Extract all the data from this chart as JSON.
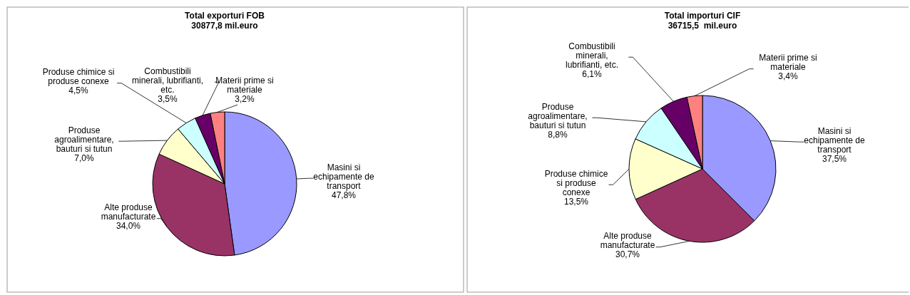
{
  "chart_data": [
    {
      "type": "pie",
      "title": "Total exporturi FOB",
      "subtitle": "30877,8 mil.euro",
      "categories": [
        "Masini si\nechipamente de\ntransport",
        "Alte produse\nmanufacturate",
        "Produse\nagroalimentare,\nbauturi si tutun",
        "Produse chimice si\nproduse conexe",
        "Combustibili\nminerali, lubrifianti,\netc.",
        "Materii prime si\nmateriale"
      ],
      "values": [
        47.8,
        34.0,
        7.0,
        4.5,
        3.5,
        3.2
      ],
      "value_labels": [
        "47,8%",
        "34,0%",
        "7,0%",
        "4,5%",
        "3,5%",
        "3,2%"
      ],
      "colors": [
        "#9999ff",
        "#993366",
        "#ffffcc",
        "#ccffff",
        "#660066",
        "#ff8080"
      ]
    },
    {
      "type": "pie",
      "title": "Total importuri CIF",
      "subtitle": "36715,5  mil.euro",
      "categories": [
        "Masini si\nechipamente de\ntransport",
        "Alte produse\nmanufacturate",
        "Produse chimice\nsi produse\nconexe",
        "Produse\nagroalimentare,\nbauturi si tutun",
        "Combustibili\nminerali,\nlubrifianti, etc.",
        "Materii prime si\nmateriale"
      ],
      "values": [
        37.5,
        30.7,
        13.5,
        8.8,
        6.1,
        3.4
      ],
      "value_labels": [
        "37,5%",
        "30,7%",
        "13,5%",
        "8,8%",
        "6,1%",
        "3,4%"
      ],
      "colors": [
        "#9999ff",
        "#993366",
        "#ffffcc",
        "#ccffff",
        "#660066",
        "#ff8080"
      ]
    }
  ]
}
